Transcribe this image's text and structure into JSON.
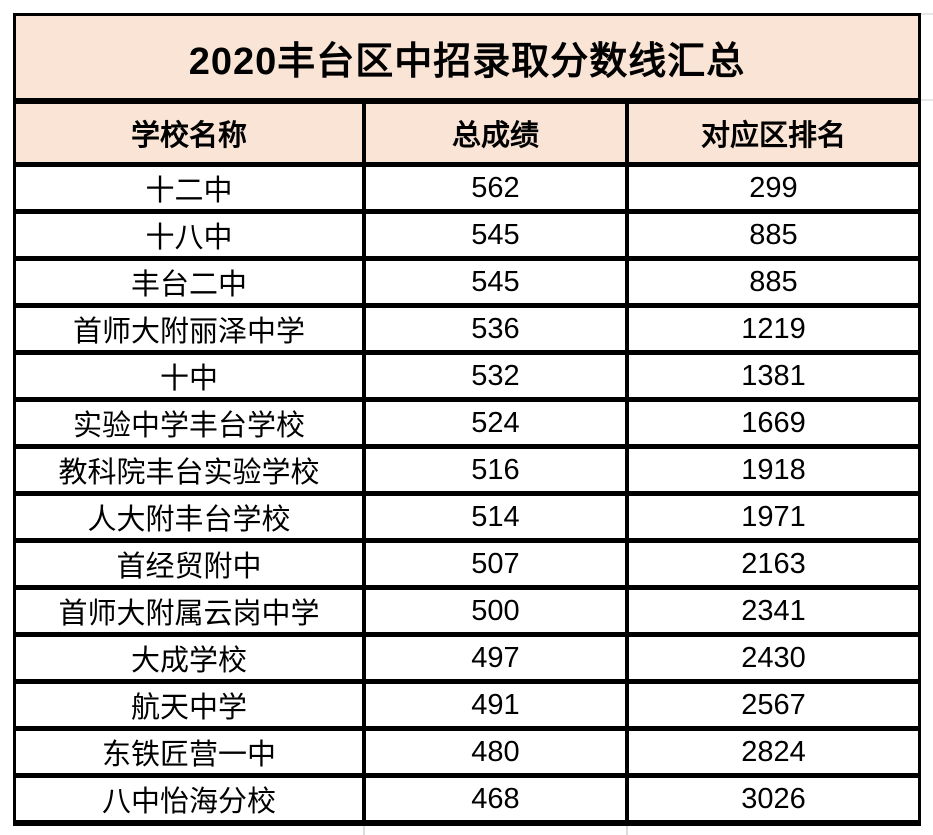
{
  "chart_data": {
    "type": "table",
    "title": "2020丰台区中招录取分数线汇总",
    "columns": [
      "学校名称",
      "总成绩",
      "对应区排名"
    ],
    "rows": [
      [
        "十二中",
        "562",
        "299"
      ],
      [
        "十八中",
        "545",
        "885"
      ],
      [
        "丰台二中",
        "545",
        "885"
      ],
      [
        "首师大附丽泽中学",
        "536",
        "1219"
      ],
      [
        "十中",
        "532",
        "1381"
      ],
      [
        "实验中学丰台学校",
        "524",
        "1669"
      ],
      [
        "教科院丰台实验学校",
        "516",
        "1918"
      ],
      [
        "人大附丰台学校",
        "514",
        "1971"
      ],
      [
        "首经贸附中",
        "507",
        "2163"
      ],
      [
        "首师大附属云岗中学",
        "500",
        "2341"
      ],
      [
        "大成学校",
        "497",
        "2430"
      ],
      [
        "航天中学",
        "491",
        "2567"
      ],
      [
        "东铁匠营一中",
        "480",
        "2824"
      ],
      [
        "八中怡海分校",
        "468",
        "3026"
      ]
    ],
    "colors": {
      "header_bg": "#F9E4D5",
      "row_bg": "#FFFFFF",
      "border": "#000000",
      "text": "#000000"
    },
    "layout_hints": {
      "grid": "on",
      "title_position": "top-merged-row",
      "column_alignment": [
        "center",
        "center",
        "center"
      ]
    }
  }
}
